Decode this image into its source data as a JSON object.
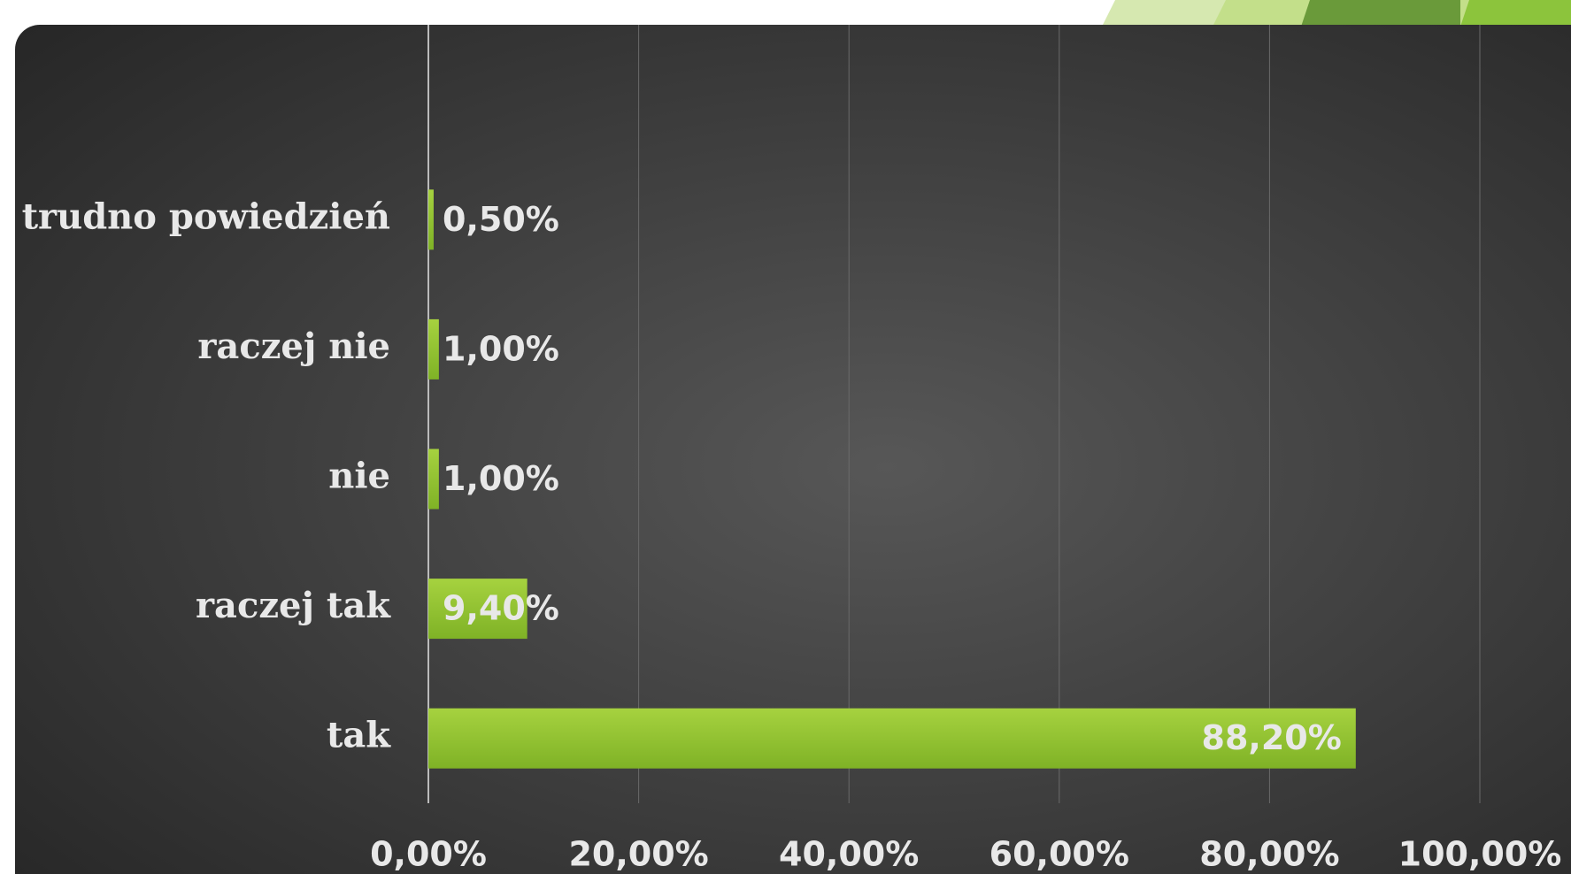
{
  "chart_data": {
    "type": "bar",
    "orientation": "horizontal",
    "categories": [
      "trudno powiedzień",
      "raczej nie",
      "nie",
      "raczej tak",
      "tak"
    ],
    "values": [
      0.5,
      1,
      1,
      9.4,
      88.2
    ],
    "value_labels": [
      "0,50%",
      "1,00%",
      "1,00%",
      "9,40%",
      "88,20%"
    ],
    "color": "#8dc02c",
    "xlim": [
      0,
      100
    ],
    "xticks": [
      {
        "value": 0,
        "label": "0,00%"
      },
      {
        "value": 20,
        "label": "20,00%"
      },
      {
        "value": 40,
        "label": "40,00%"
      },
      {
        "value": 60,
        "label": "60,00%"
      },
      {
        "value": 80,
        "label": "80,00%"
      },
      {
        "value": 100,
        "label": "100,00%"
      }
    ],
    "grid": true
  }
}
